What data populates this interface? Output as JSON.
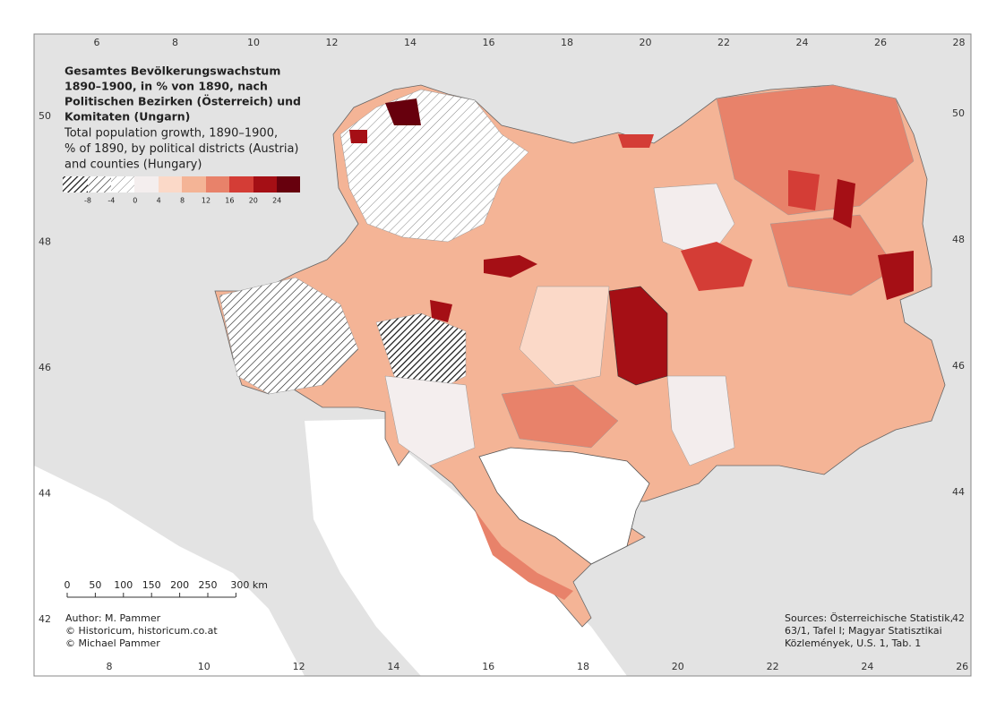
{
  "title": [
    "Gesamtes Bevölkerungswachstum",
    "1890–1900, in % von 1890, nach",
    "Politischen Bezirken (Österreich) und",
    "Komitaten (Ungarn)"
  ],
  "subtitle": [
    "Total population growth, 1890–1900,",
    "% of 1890, by political districts (Austria)",
    "and counties (Hungary)"
  ],
  "legend": {
    "labels": [
      "-8",
      "-4",
      "0",
      "4",
      "8",
      "12",
      "16",
      "20",
      "24"
    ]
  },
  "graticule": {
    "top": [
      "6",
      "8",
      "10",
      "12",
      "14",
      "16",
      "18",
      "20",
      "22",
      "24",
      "26",
      "28"
    ],
    "bottom": [
      "8",
      "10",
      "12",
      "14",
      "16",
      "18",
      "20",
      "22",
      "24",
      "26"
    ],
    "left": [
      "50",
      "48",
      "46",
      "44",
      "42"
    ],
    "right": [
      "50",
      "48",
      "46",
      "44",
      "42"
    ]
  },
  "scale_bar": [
    "0",
    "50",
    "100",
    "150",
    "200",
    "250",
    "300 km"
  ],
  "credits": [
    "Author: M. Pammer",
    "© Historicum, historicum.co.at",
    "© Michael Pammer"
  ],
  "sources": [
    "Sources: Österreichische Statistik,",
    "63/1, Tafel I; Magyar Statisztikai",
    "Közlemények, U.S. 1, Tab. 1"
  ]
}
